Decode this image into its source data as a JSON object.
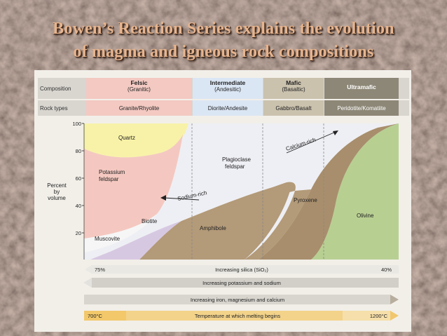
{
  "title": {
    "line1": "Bowen’s Reaction Series explains the evolution",
    "line2": "of magma and igneous rock compositions"
  },
  "colors": {
    "felsic": "#f3c9c2",
    "intermediate": "#dbe6f4",
    "mafic": "#cbc2ae",
    "ultramafic": "#8d8777",
    "quartz": "#f8f2a8",
    "potassium_feldspar": "#f4c8c0",
    "plagioclase": "#e8eaf0",
    "biotite": "#d7c8e2",
    "amphibole": "#b39a78",
    "pyroxene": "#a88e6c",
    "olivine": "#b8cf92"
  },
  "header": {
    "composition_label": "Composition",
    "rock_types_label": "Rock types",
    "columns": [
      {
        "name": "Felsic",
        "sub": "(Granitic)",
        "rock": "Granite/Rhyolite"
      },
      {
        "name": "Intermediate",
        "sub": "(Andesitic)",
        "rock": "Diorite/Andesite"
      },
      {
        "name": "Mafic",
        "sub": "(Basaltic)",
        "rock": "Gabbro/Basalt"
      },
      {
        "name": "Ultramafic",
        "sub": "",
        "rock": "Peridotite/Komatiite"
      }
    ]
  },
  "y_axis": {
    "label_line1": "Percent",
    "label_line2": "by",
    "label_line3": "volume",
    "ticks": [
      "100",
      "80",
      "60",
      "40",
      "20"
    ]
  },
  "minerals": {
    "quartz": "Quartz",
    "potassium_feldspar_1": "Potassium",
    "potassium_feldspar_2": "feldspar",
    "plagioclase_1": "Plagioclase",
    "plagioclase_2": "feldspar",
    "biotite": "Biotite",
    "muscovite": "Muscovite",
    "amphibole": "Amphibole",
    "pyroxene": "Pyroxene",
    "olivine": "Olivine",
    "calcium_rich": "Calcium-rich",
    "sodium_rich": "Sodium-rich"
  },
  "arrows": [
    {
      "left": "75%",
      "text": "Increasing silica (SiO₂)",
      "right": "40%"
    },
    {
      "left": "",
      "text": "Increasing potassium and sodium",
      "right": ""
    },
    {
      "left": "",
      "text": "Increasing iron, magnesium and calcium",
      "right": ""
    },
    {
      "left": "700°C",
      "text": "Temperature at which melting begins",
      "right": "1200°C"
    }
  ]
}
